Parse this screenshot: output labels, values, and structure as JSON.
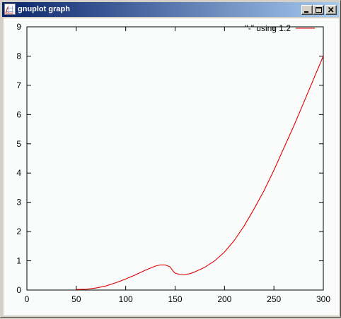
{
  "window": {
    "title": "gnuplot graph",
    "controls": {
      "minimize_icon": "minimize-icon",
      "maximize_icon": "maximize-icon",
      "close_icon": "close-icon"
    }
  },
  "chart_data": {
    "type": "line",
    "title": "",
    "xlabel": "",
    "ylabel": "",
    "xlim": [
      0,
      300
    ],
    "ylim": [
      0,
      9
    ],
    "x_ticks": [
      0,
      50,
      100,
      150,
      200,
      250,
      300
    ],
    "y_ticks": [
      0,
      1,
      2,
      3,
      4,
      5,
      6,
      7,
      8,
      9
    ],
    "grid": false,
    "legend": {
      "placement": "top-right"
    },
    "series": [
      {
        "name": "\"-\" using 1:2",
        "color": "#e00000",
        "x": [
          50,
          60,
          70,
          80,
          90,
          100,
          110,
          120,
          130,
          135,
          140,
          145,
          148,
          150,
          155,
          160,
          165,
          170,
          180,
          190,
          200,
          210,
          220,
          230,
          240,
          250,
          260,
          270,
          280,
          290,
          300
        ],
        "y": [
          0.02,
          0.03,
          0.07,
          0.14,
          0.25,
          0.38,
          0.52,
          0.68,
          0.82,
          0.86,
          0.86,
          0.79,
          0.65,
          0.58,
          0.53,
          0.53,
          0.56,
          0.62,
          0.78,
          1.0,
          1.3,
          1.7,
          2.2,
          2.78,
          3.4,
          4.1,
          4.85,
          5.6,
          6.4,
          7.2,
          8.0
        ]
      }
    ]
  }
}
